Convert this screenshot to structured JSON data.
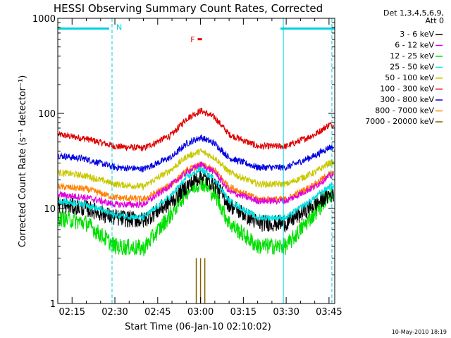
{
  "chart_data": {
    "type": "line",
    "title": "HESSI Observing Summary Count Rates, Corrected",
    "xlabel": "Start Time (06-Jan-10 02:10:02)",
    "ylabel": "Corrected Count Rate (s⁻¹ detector⁻¹)",
    "yscale": "log",
    "ylim": [
      1,
      1000
    ],
    "xlim": [
      "02:10",
      "03:47"
    ],
    "x_ticks": [
      "02:15",
      "02:30",
      "02:45",
      "03:00",
      "03:15",
      "03:30",
      "03:45"
    ],
    "y_ticks": [
      "1",
      "10",
      "100",
      "1000"
    ],
    "legend_header": [
      "Det 1,3,4,5,6,9,",
      "Att 0"
    ],
    "legend_position": "right",
    "footer_date": "10-May-2010 18:19",
    "annotations": {
      "night_label": "N",
      "flare_label": "F",
      "night_start": "02:28",
      "night_end": "03:28",
      "flare_time": "03:00",
      "cyan_line_1": "02:29",
      "cyan_line_2": "03:29",
      "cyan_line_3": "03:46",
      "night_bar_level": 780
    },
    "x": [
      "02:10",
      "02:20",
      "02:30",
      "02:40",
      "02:50",
      "02:55",
      "03:00",
      "03:05",
      "03:10",
      "03:20",
      "03:30",
      "03:40",
      "03:45"
    ],
    "series": [
      {
        "name": "3 - 6 keV",
        "color": "#000000",
        "values": [
          11,
          10,
          8,
          7.5,
          12,
          17,
          22,
          18,
          11,
          7,
          7,
          11,
          14
        ]
      },
      {
        "name": "6 - 12 keV",
        "color": "#e000e0",
        "values": [
          14,
          13,
          11,
          11,
          18,
          24,
          29,
          24,
          15,
          12,
          12,
          17,
          22
        ]
      },
      {
        "name": "12 - 25 keV",
        "color": "#00e000",
        "values": [
          8,
          7,
          4,
          3.8,
          9,
          15,
          19,
          14,
          7,
          4,
          4,
          9,
          14
        ]
      },
      {
        "name": "25 - 50 keV",
        "color": "#00e0e0",
        "values": [
          12,
          11,
          8.5,
          8,
          14,
          21,
          26,
          20,
          12,
          8,
          8,
          13,
          17
        ]
      },
      {
        "name": "50 - 100 keV",
        "color": "#c8c800",
        "values": [
          24,
          22,
          18,
          17,
          26,
          35,
          40,
          34,
          24,
          18,
          18,
          24,
          30
        ]
      },
      {
        "name": "100 - 300 keV",
        "color": "#e00000",
        "values": [
          60,
          54,
          45,
          43,
          60,
          88,
          107,
          90,
          60,
          45,
          45,
          60,
          76
        ]
      },
      {
        "name": "300 - 800 keV",
        "color": "#0000e0",
        "values": [
          36,
          33,
          27,
          26,
          35,
          48,
          56,
          48,
          34,
          27,
          27,
          36,
          44
        ]
      },
      {
        "name": "800 - 7000 keV",
        "color": "#ff8000",
        "values": [
          17,
          16,
          13,
          12.5,
          18,
          25,
          29,
          25,
          17,
          12.5,
          12.5,
          18,
          23
        ]
      },
      {
        "name": "7000 - 20000 keV",
        "color": "#806000",
        "values": [
          0,
          0,
          0,
          0,
          0,
          0,
          0,
          0,
          0,
          0,
          0,
          0,
          0
        ],
        "spikes": [
          {
            "x": "02:59",
            "value": 3
          },
          {
            "x": "03:00",
            "value": 3
          },
          {
            "x": "03:01",
            "value": 3
          }
        ]
      }
    ]
  }
}
